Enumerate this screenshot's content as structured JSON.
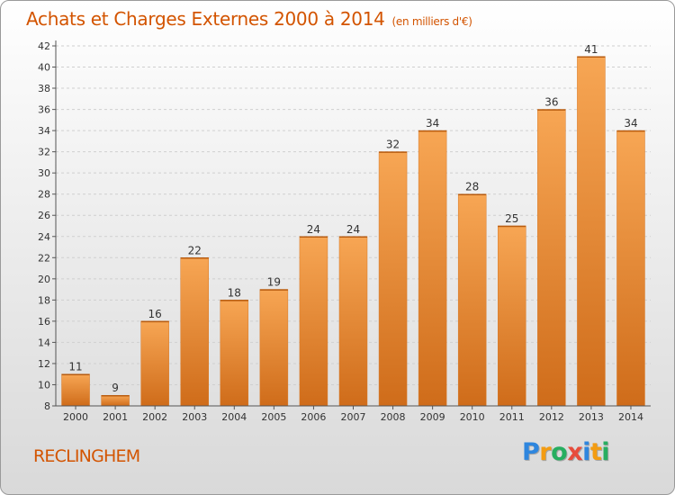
{
  "header": {
    "title": "Achats et Charges Externes 2000 à 2014",
    "subtitle": "(en milliers d'€)"
  },
  "commune": "RECLINGHEM",
  "logo": {
    "text": "Proxiti",
    "letters": [
      {
        "char": "P",
        "color": "#2e86de"
      },
      {
        "char": "r",
        "color": "#f39c12"
      },
      {
        "char": "o",
        "color": "#27ae60"
      },
      {
        "char": "x",
        "color": "#e74c3c"
      },
      {
        "char": "i",
        "color": "#2e86de"
      },
      {
        "char": "t",
        "color": "#f39c12"
      },
      {
        "char": "i",
        "color": "#27ae60"
      }
    ]
  },
  "colors": {
    "accent": "#d35400",
    "bar_light": "#f7a654",
    "bar_dark": "#cf6c1a"
  },
  "chart_data": {
    "type": "bar",
    "title": "Achats et Charges Externes 2000 à 2014",
    "subtitle": "(en milliers d'€)",
    "categories": [
      "2000",
      "2001",
      "2002",
      "2003",
      "2004",
      "2005",
      "2006",
      "2007",
      "2008",
      "2009",
      "2010",
      "2011",
      "2012",
      "2013",
      "2014"
    ],
    "values": [
      11,
      9,
      16,
      22,
      18,
      19,
      24,
      24,
      32,
      34,
      28,
      25,
      36,
      41,
      34
    ],
    "ylim": [
      8,
      42
    ],
    "yticks": [
      8,
      10,
      12,
      14,
      16,
      18,
      20,
      22,
      24,
      26,
      28,
      30,
      32,
      34,
      36,
      38,
      40,
      42
    ],
    "grid": true,
    "data_labels": true
  }
}
